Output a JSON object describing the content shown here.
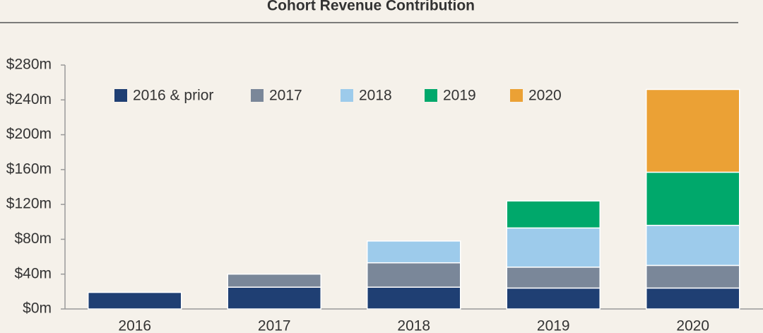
{
  "chart_data": {
    "type": "stacked-bar",
    "title": "Cohort Revenue Contribution",
    "categories": [
      "2016",
      "2017",
      "2018",
      "2019",
      "2020"
    ],
    "series": [
      {
        "name": "2016 & prior",
        "color": "#1f3f73",
        "values": [
          19,
          25,
          25,
          24,
          24
        ]
      },
      {
        "name": "2017",
        "color": "#7a8799",
        "values": [
          null,
          15,
          28,
          24,
          26
        ]
      },
      {
        "name": "2018",
        "color": "#9dcbeb",
        "values": [
          null,
          null,
          25,
          45,
          46
        ]
      },
      {
        "name": "2019",
        "color": "#00a86b",
        "values": [
          null,
          null,
          null,
          31,
          61
        ]
      },
      {
        "name": "2020",
        "color": "#eba135",
        "values": [
          null,
          null,
          null,
          null,
          95
        ]
      }
    ],
    "ylim": [
      0,
      280
    ],
    "yticks": [
      {
        "value": 0,
        "label": "$0m"
      },
      {
        "value": 40,
        "label": "$40m"
      },
      {
        "value": 80,
        "label": "$80m"
      },
      {
        "value": 120,
        "label": "$120m"
      },
      {
        "value": 160,
        "label": "$160m"
      },
      {
        "value": 200,
        "label": "$200m"
      },
      {
        "value": 240,
        "label": "$240m"
      },
      {
        "value": 280,
        "label": "$280m"
      }
    ],
    "grid": false,
    "legend": "top"
  }
}
